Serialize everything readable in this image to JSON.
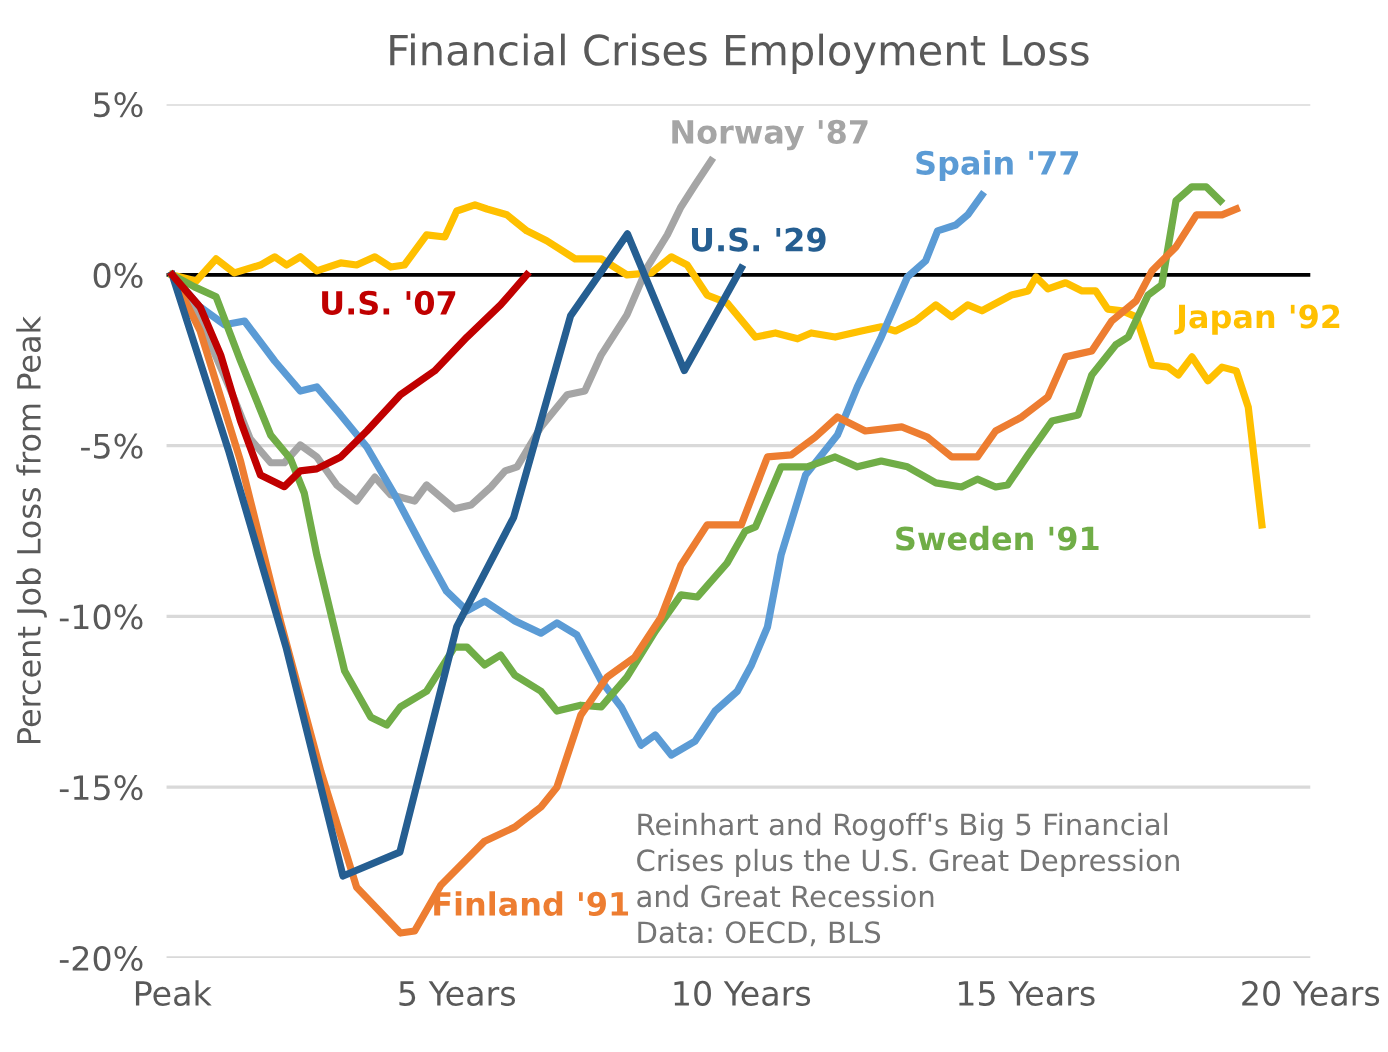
{
  "chart_data": {
    "type": "line",
    "title": "Financial Crises Employment Loss",
    "ylabel": "Percent Job Loss from Peak",
    "xlim": [
      -0.1,
      20
    ],
    "xticks": [
      {
        "value": 0,
        "label": "Peak"
      },
      {
        "value": 5,
        "label": "5 Years"
      },
      {
        "value": 10,
        "label": "10 Years"
      },
      {
        "value": 15,
        "label": "15 Years"
      },
      {
        "value": 20,
        "label": "20 Years"
      }
    ],
    "ylim": [
      -20,
      5
    ],
    "yticks": [
      {
        "value": -20,
        "label": "-20%"
      },
      {
        "value": -15,
        "label": "-15%"
      },
      {
        "value": -10,
        "label": "-10%"
      },
      {
        "value": -5,
        "label": "-5%"
      },
      {
        "value": 0,
        "label": "0%"
      },
      {
        "value": 5,
        "label": "5%"
      }
    ],
    "grid": "y",
    "legend": false,
    "marker": "none",
    "line_style": "solid",
    "ref_lines": [
      {
        "axis": "y",
        "value": 0,
        "label": null,
        "color": "#000000"
      }
    ],
    "annotations": [
      "Reinhart and Rogoff's Big 5 Financial\nCrises plus the U.S. Great Depression\nand Great Recession\nData: OECD, BLS"
    ],
    "series": [
      {
        "name": "Japan '92",
        "color": "#ffc000",
        "x": [
          0,
          0.42,
          0.77,
          1.09,
          1.55,
          1.8,
          2.01,
          2.25,
          2.54,
          2.96,
          3.24,
          3.56,
          3.84,
          4.08,
          4.47,
          4.79,
          5.0,
          5.32,
          5.53,
          5.88,
          6.23,
          6.58,
          7.08,
          7.54,
          7.99,
          8.42,
          8.77,
          9.05,
          9.4,
          9.75,
          10.25,
          10.6,
          10.99,
          11.23,
          11.65,
          12.11,
          12.46,
          12.71,
          13.06,
          13.42,
          13.7,
          13.98,
          14.23,
          14.75,
          15.04,
          15.18,
          15.39,
          15.7,
          15.99,
          16.23,
          16.44,
          16.69,
          16.94,
          17.22,
          17.5,
          17.68,
          17.92,
          18.2,
          18.45,
          18.7,
          18.91,
          19.15
        ],
        "values": [
          0,
          -0.18,
          0.47,
          0.06,
          0.29,
          0.53,
          0.29,
          0.53,
          0.12,
          0.35,
          0.29,
          0.53,
          0.23,
          0.29,
          1.17,
          1.11,
          1.87,
          2.05,
          1.93,
          1.76,
          1.29,
          1.0,
          0.47,
          0.47,
          0,
          0.06,
          0.53,
          0.29,
          -0.59,
          -0.82,
          -1.82,
          -1.7,
          -1.87,
          -1.7,
          -1.82,
          -1.64,
          -1.52,
          -1.64,
          -1.35,
          -0.88,
          -1.23,
          -0.88,
          -1.05,
          -0.59,
          -0.47,
          -0.06,
          -0.41,
          -0.23,
          -0.47,
          -0.47,
          -1.0,
          -1.05,
          -1.23,
          -2.64,
          -2.7,
          -2.93,
          -2.4,
          -3.1,
          -2.7,
          -2.81,
          -3.87,
          -7.32
        ]
      },
      {
        "name": "Norway '87",
        "color": "#a5a5a5",
        "x": [
          0,
          0.39,
          0.74,
          1.09,
          1.37,
          1.73,
          1.97,
          2.25,
          2.54,
          2.89,
          3.24,
          3.56,
          3.84,
          4.26,
          4.47,
          4.96,
          5.25,
          5.6,
          5.85,
          6.06,
          6.48,
          6.94,
          7.25,
          7.54,
          7.99,
          8.35,
          8.7,
          8.94,
          9.19,
          9.47
        ],
        "values": [
          0,
          -0.94,
          -2.28,
          -3.63,
          -4.8,
          -5.5,
          -5.5,
          -4.98,
          -5.33,
          -6.15,
          -6.62,
          -5.92,
          -6.44,
          -6.62,
          -6.15,
          -6.85,
          -6.74,
          -6.21,
          -5.74,
          -5.62,
          -4.45,
          -3.51,
          -3.4,
          -2.34,
          -1.17,
          0.23,
          1.17,
          1.99,
          2.64,
          3.34
        ]
      },
      {
        "name": "Spain '77",
        "color": "#5b9bd5",
        "x": [
          0,
          0.49,
          0.92,
          1.27,
          1.8,
          2.25,
          2.54,
          2.96,
          3.42,
          3.91,
          4.47,
          4.82,
          5.18,
          5.49,
          6.02,
          6.48,
          6.76,
          7.11,
          7.54,
          7.89,
          8.24,
          8.49,
          8.77,
          9.19,
          9.54,
          9.93,
          10.18,
          10.46,
          10.7,
          11.13,
          11.69,
          12.04,
          12.46,
          12.92,
          13.24,
          13.45,
          13.77,
          13.98,
          14.23
        ],
        "values": [
          0,
          -0.94,
          -1.46,
          -1.35,
          -2.52,
          -3.4,
          -3.28,
          -4.1,
          -5.04,
          -6.44,
          -8.2,
          -9.26,
          -9.84,
          -9.55,
          -10.13,
          -10.49,
          -10.19,
          -10.54,
          -11.89,
          -12.65,
          -13.77,
          -13.47,
          -14.06,
          -13.65,
          -12.77,
          -12.19,
          -11.42,
          -10.31,
          -8.2,
          -5.86,
          -4.69,
          -3.28,
          -1.82,
          -0.06,
          0.41,
          1.29,
          1.46,
          1.76,
          2.34
        ]
      },
      {
        "name": "Sweden '91",
        "color": "#70ad47",
        "x": [
          0,
          0.39,
          0.77,
          1.2,
          1.73,
          2.08,
          2.32,
          2.54,
          3.03,
          3.49,
          3.77,
          4.01,
          4.47,
          4.96,
          5.18,
          5.49,
          5.77,
          6.02,
          6.48,
          6.76,
          7.18,
          7.54,
          7.99,
          8.49,
          8.94,
          9.23,
          9.75,
          10.07,
          10.25,
          10.7,
          11.16,
          11.65,
          12.04,
          12.46,
          12.92,
          13.42,
          13.87,
          14.15,
          14.47,
          14.68,
          15.04,
          15.46,
          15.92,
          16.16,
          16.58,
          16.8,
          17.15,
          17.39,
          17.64,
          17.92,
          18.17,
          18.42
        ],
        "values": [
          0,
          -0.35,
          -0.64,
          -2.52,
          -4.69,
          -5.39,
          -6.39,
          -8.2,
          -11.6,
          -12.95,
          -13.18,
          -12.65,
          -12.19,
          -10.9,
          -10.9,
          -11.42,
          -11.13,
          -11.72,
          -12.19,
          -12.77,
          -12.6,
          -12.65,
          -11.78,
          -10.43,
          -9.37,
          -9.43,
          -8.44,
          -7.5,
          -7.38,
          -5.62,
          -5.62,
          -5.33,
          -5.62,
          -5.45,
          -5.62,
          -6.09,
          -6.21,
          -5.98,
          -6.21,
          -6.15,
          -5.27,
          -4.28,
          -4.1,
          -2.93,
          -2.05,
          -1.82,
          -0.59,
          -0.29,
          2.17,
          2.58,
          2.58,
          2.17
        ]
      },
      {
        "name": "Finland '91",
        "color": "#ed7d31",
        "x": [
          0,
          0.49,
          1.2,
          1.9,
          2.61,
          3.24,
          4.01,
          4.26,
          4.72,
          5.49,
          6.02,
          6.48,
          6.76,
          7.18,
          7.64,
          8.13,
          8.59,
          8.94,
          9.4,
          10.0,
          10.46,
          10.88,
          11.3,
          11.69,
          12.18,
          12.82,
          13.27,
          13.7,
          14.15,
          14.47,
          14.93,
          15.39,
          15.7,
          16.16,
          16.51,
          16.94,
          17.22,
          17.64,
          18.0,
          18.45,
          18.7
        ],
        "values": [
          0,
          -1.64,
          -5.45,
          -10.13,
          -14.53,
          -17.93,
          -19.27,
          -19.21,
          -17.87,
          -16.58,
          -16.17,
          -15.58,
          -15.0,
          -12.89,
          -11.78,
          -11.19,
          -10.02,
          -8.5,
          -7.32,
          -7.32,
          -5.33,
          -5.27,
          -4.75,
          -4.16,
          -4.57,
          -4.45,
          -4.75,
          -5.33,
          -5.33,
          -4.57,
          -4.16,
          -3.57,
          -2.4,
          -2.23,
          -1.35,
          -0.76,
          0.12,
          0.82,
          1.76,
          1.76,
          1.93
        ]
      },
      {
        "name": "U.S. '29",
        "color": "#255e91",
        "x": [
          0,
          1,
          2,
          3,
          4,
          5,
          6,
          7,
          8,
          9,
          10
        ],
        "values": [
          0,
          -5.2,
          -10.9,
          -17.6,
          -16.9,
          -10.3,
          -7.1,
          -1.2,
          1.2,
          -2.8,
          0.2
        ]
      },
      {
        "name": "U.S. '07",
        "color": "#c00000",
        "x": [
          0,
          0.49,
          0.85,
          1.2,
          1.55,
          1.97,
          2.25,
          2.54,
          2.96,
          3.42,
          4.01,
          4.61,
          5.18,
          5.77,
          6.23
        ],
        "values": [
          0,
          -0.94,
          -2.34,
          -4.28,
          -5.86,
          -6.2,
          -5.74,
          -5.68,
          -5.33,
          -4.57,
          -3.51,
          -2.81,
          -1.82,
          -0.88,
          0
        ]
      }
    ]
  }
}
